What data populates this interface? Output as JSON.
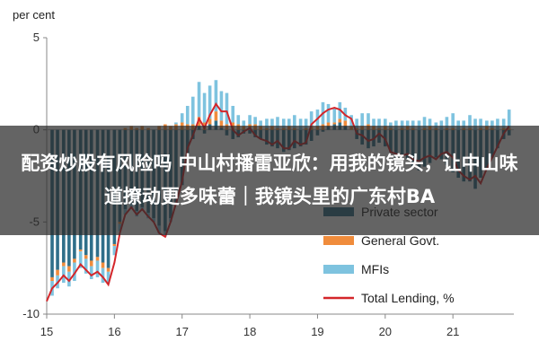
{
  "chart_data": {
    "type": "bar",
    "unit_label": "per cent",
    "y_ticks": [
      "5",
      "0",
      "-5",
      "-10"
    ],
    "x_ticks": [
      "15",
      "16",
      "17",
      "18",
      "19",
      "20",
      "21"
    ],
    "ylim": [
      -10,
      5
    ],
    "xlim": [
      15.0,
      21.9
    ],
    "grid": false,
    "legend_position": "bottom-right",
    "series": [
      {
        "name": "Private sector",
        "color": "#2f6f8a",
        "x": [
          15.08,
          15.16,
          15.25,
          15.33,
          15.41,
          15.5,
          15.58,
          15.66,
          15.75,
          15.83,
          15.91,
          16.0,
          16.08,
          16.16,
          16.25,
          16.33,
          16.41,
          16.5,
          16.58,
          16.66,
          16.75,
          16.83,
          16.91,
          17.0,
          17.08,
          17.16,
          17.25,
          17.33,
          17.41,
          17.5,
          17.58,
          17.66,
          17.75,
          17.83,
          17.91,
          18.0,
          18.08,
          18.16,
          18.25,
          18.33,
          18.41,
          18.5,
          18.58,
          18.66,
          18.75,
          18.83,
          18.91,
          19.0,
          19.08,
          19.16,
          19.25,
          19.33,
          19.41,
          19.5,
          19.58,
          19.66,
          19.75,
          19.83,
          19.91,
          20.0,
          20.08,
          20.16,
          20.25,
          20.33,
          20.41,
          20.5,
          20.58,
          20.66,
          20.75,
          20.83,
          20.91,
          21.0,
          21.08,
          21.16,
          21.25,
          21.33,
          21.41,
          21.5,
          21.58,
          21.66,
          21.75,
          21.83
        ],
        "values": [
          -8.0,
          -7.6,
          -7.2,
          -7.4,
          -7.0,
          -6.5,
          -6.8,
          -7.1,
          -6.9,
          -7.2,
          -7.5,
          -6.2,
          -5.0,
          -4.3,
          -4.0,
          -4.4,
          -4.2,
          -4.5,
          -4.8,
          -5.2,
          -5.5,
          -4.8,
          -4.0,
          -3.0,
          -1.5,
          -0.5,
          0.2,
          -0.2,
          0.3,
          0.5,
          0.1,
          -0.3,
          -0.5,
          -0.4,
          -0.2,
          -0.2,
          -0.4,
          -0.5,
          -0.8,
          -0.9,
          -1.0,
          -1.2,
          -1.1,
          -1.0,
          -0.9,
          -0.8,
          -0.6,
          -0.3,
          -0.1,
          0.2,
          0.3,
          0.4,
          0.2,
          0.0,
          -0.5,
          -0.8,
          -1.0,
          -0.9,
          -0.7,
          -0.9,
          -1.2,
          -1.5,
          -1.4,
          -1.6,
          -2.0,
          -2.2,
          -2.0,
          -1.8,
          -1.5,
          -1.6,
          -1.9,
          -2.3,
          -2.6,
          -2.8,
          -2.8,
          -3.2,
          -2.6,
          -2.1,
          -1.5,
          -1.0,
          -0.5,
          -0.3
        ]
      },
      {
        "name": "General Govt.",
        "color": "#f08c3c",
        "x": [
          15.08,
          15.16,
          15.25,
          15.33,
          15.41,
          15.5,
          15.58,
          15.66,
          15.75,
          15.83,
          15.91,
          16.0,
          16.08,
          16.16,
          16.25,
          16.33,
          16.41,
          16.5,
          16.58,
          16.66,
          16.75,
          16.83,
          16.91,
          17.0,
          17.08,
          17.16,
          17.25,
          17.33,
          17.41,
          17.5,
          17.58,
          17.66,
          17.75,
          17.83,
          17.91,
          18.0,
          18.08,
          18.16,
          18.25,
          18.33,
          18.41,
          18.5,
          18.58,
          18.66,
          18.75,
          18.83,
          18.91,
          19.0,
          19.08,
          19.16,
          19.25,
          19.33,
          19.41,
          19.5,
          19.58,
          19.66,
          19.75,
          19.83,
          19.91,
          20.0,
          20.08,
          20.16,
          20.25,
          20.33,
          20.41,
          20.5,
          20.58,
          20.66,
          20.75,
          20.83,
          20.91,
          21.0,
          21.08,
          21.16,
          21.25,
          21.33,
          21.41,
          21.5,
          21.58,
          21.66,
          21.75,
          21.83
        ],
        "values": [
          -0.2,
          -0.3,
          -0.2,
          -0.3,
          -0.2,
          -0.1,
          -0.2,
          -0.3,
          -0.2,
          -0.3,
          -0.2,
          -0.1,
          -0.1,
          0.1,
          0.2,
          0.1,
          0.2,
          0.1,
          0.0,
          0.2,
          0.3,
          0.2,
          0.3,
          0.4,
          0.3,
          0.3,
          0.5,
          0.4,
          0.3,
          0.5,
          0.4,
          0.3,
          0.4,
          0.3,
          0.2,
          0.3,
          0.3,
          0.2,
          0.1,
          0.2,
          0.1,
          0.1,
          0.2,
          0.1,
          0.0,
          0.1,
          0.2,
          0.2,
          0.3,
          0.2,
          0.1,
          0.2,
          0.3,
          0.2,
          0.1,
          0.2,
          0.3,
          0.2,
          0.1,
          0.2,
          0.1,
          0.0,
          0.1,
          0.2,
          0.1,
          0.0,
          0.1,
          0.2,
          0.1,
          0.0,
          0.1,
          0.1,
          0.0,
          0.1,
          0.1,
          0.0,
          0.1,
          0.2,
          0.1,
          0.0,
          0.1,
          0.1
        ]
      },
      {
        "name": "MFIs",
        "color": "#7ec3df",
        "x": [
          15.08,
          15.16,
          15.25,
          15.33,
          15.41,
          15.5,
          15.58,
          15.66,
          15.75,
          15.83,
          15.91,
          16.0,
          16.08,
          16.16,
          16.25,
          16.33,
          16.41,
          16.5,
          16.58,
          16.66,
          16.75,
          16.83,
          16.91,
          17.0,
          17.08,
          17.16,
          17.25,
          17.33,
          17.41,
          17.5,
          17.58,
          17.66,
          17.75,
          17.83,
          17.91,
          18.0,
          18.08,
          18.16,
          18.25,
          18.33,
          18.41,
          18.5,
          18.58,
          18.66,
          18.75,
          18.83,
          18.91,
          19.0,
          19.08,
          19.16,
          19.25,
          19.33,
          19.41,
          19.5,
          19.58,
          19.66,
          19.75,
          19.83,
          19.91,
          20.0,
          20.08,
          20.16,
          20.25,
          20.33,
          20.41,
          20.5,
          20.58,
          20.66,
          20.75,
          20.83,
          20.91,
          21.0,
          21.08,
          21.16,
          21.25,
          21.33,
          21.41,
          21.5,
          21.58,
          21.66,
          21.75,
          21.83
        ],
        "values": [
          -0.8,
          -0.7,
          -0.9,
          -0.8,
          -1.0,
          -0.9,
          -0.8,
          -0.7,
          -0.9,
          -0.8,
          -0.6,
          -0.5,
          -0.4,
          -0.3,
          -0.2,
          -0.3,
          -0.2,
          -0.3,
          -0.2,
          -0.4,
          -0.3,
          -0.2,
          0.1,
          0.5,
          1.0,
          1.5,
          1.9,
          1.6,
          1.8,
          1.7,
          1.6,
          1.7,
          0.9,
          0.5,
          0.3,
          0.5,
          0.4,
          0.3,
          0.5,
          0.4,
          0.6,
          0.5,
          0.4,
          0.7,
          0.6,
          0.5,
          0.8,
          0.9,
          1.2,
          1.0,
          0.8,
          0.9,
          0.7,
          0.6,
          0.5,
          0.7,
          0.6,
          0.4,
          0.5,
          0.4,
          0.3,
          0.5,
          0.4,
          0.3,
          0.4,
          0.5,
          0.6,
          0.4,
          0.3,
          0.5,
          0.6,
          0.8,
          0.5,
          0.4,
          0.7,
          0.6,
          0.5,
          0.3,
          0.4,
          0.6,
          0.5,
          1.0
        ]
      },
      {
        "name": "Total Lending, %",
        "color": "#d4262a",
        "type": "line",
        "x": [
          15.0,
          15.08,
          15.16,
          15.25,
          15.33,
          15.41,
          15.5,
          15.58,
          15.66,
          15.75,
          15.83,
          15.91,
          16.0,
          16.08,
          16.16,
          16.25,
          16.33,
          16.41,
          16.5,
          16.58,
          16.66,
          16.75,
          16.83,
          16.91,
          17.0,
          17.08,
          17.16,
          17.25,
          17.33,
          17.41,
          17.5,
          17.58,
          17.66,
          17.75,
          17.83,
          17.91,
          18.0,
          18.08,
          18.16,
          18.25,
          18.33,
          18.41,
          18.5,
          18.58,
          18.66,
          18.75,
          18.83,
          18.91,
          19.0,
          19.08,
          19.16,
          19.25,
          19.33,
          19.41,
          19.5,
          19.58,
          19.66,
          19.75,
          19.83,
          19.91,
          20.0,
          20.08,
          20.16,
          20.25,
          20.33,
          20.41,
          20.5,
          20.58,
          20.66,
          20.75,
          20.83,
          20.91,
          21.0,
          21.08,
          21.16,
          21.25,
          21.33,
          21.41,
          21.5,
          21.58,
          21.66,
          21.75,
          21.83
        ],
        "values": [
          -9.3,
          -8.6,
          -8.3,
          -7.9,
          -8.2,
          -7.8,
          -7.3,
          -7.6,
          -7.9,
          -7.7,
          -8.0,
          -8.4,
          -7.2,
          -5.6,
          -4.6,
          -4.2,
          -4.6,
          -4.3,
          -4.7,
          -5.0,
          -5.6,
          -5.8,
          -5.0,
          -4.0,
          -2.8,
          -1.0,
          -0.3,
          0.6,
          0.1,
          0.8,
          1.4,
          1.0,
          1.0,
          0.0,
          -0.3,
          -0.1,
          0.1,
          -0.3,
          -0.5,
          -0.6,
          -0.8,
          -0.6,
          -1.0,
          -1.0,
          -0.6,
          -0.8,
          -0.7,
          0.3,
          0.6,
          0.9,
          1.1,
          1.2,
          1.1,
          0.8,
          0.6,
          -0.2,
          -0.3,
          -0.6,
          -0.5,
          -0.2,
          -0.5,
          -1.2,
          -1.3,
          -1.4,
          -1.3,
          -1.6,
          -1.7,
          -1.5,
          -1.4,
          -1.6,
          -1.3,
          -1.2,
          -1.5,
          -2.2,
          -2.5,
          -2.7,
          -2.5,
          -2.9,
          -2.1,
          -1.5,
          -0.9,
          -0.2,
          0.2
        ]
      }
    ]
  },
  "banner": {
    "text": "配资炒股有风险吗 中山村播雷亚欣：用我的镜头，让中山味道撩动更多味蕾｜我镜头里的广东村BA"
  }
}
